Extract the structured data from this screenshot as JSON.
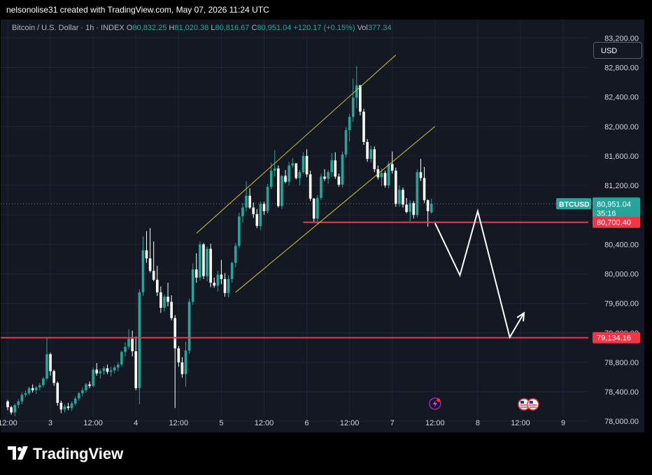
{
  "header": {
    "credit": "nelsonolise31 created with TradingView.com, May 07, 2026 11:24 UTC"
  },
  "legend": {
    "symbol": "Bitcoin / U.S. Dollar · 1h · INDEX",
    "open_label": "O",
    "open": "80,832.25",
    "high_label": "H",
    "high": "81,020.38",
    "low_label": "L",
    "low": "80,816.67",
    "close_label": "C",
    "close": "80,951.04",
    "change": "+120.17 (+0.15%)",
    "volume_label": "Vol",
    "volume": "377.34"
  },
  "currency_button": "USD",
  "price_tags": {
    "symbol": "BTCUSD",
    "last": "80,951.04",
    "countdown": "35:16",
    "level_upper": "80,700.40",
    "level_lower": "79,134.16"
  },
  "footer": {
    "brand": "TradingView"
  },
  "colors": {
    "up": "#26a69a",
    "down": "#ffffff",
    "level": "#f23645",
    "channel": "#d4c62e",
    "projection": "#ffffff",
    "background": "#141823"
  },
  "icons": [
    "lightning-event-icon",
    "us-flag-event-icon"
  ],
  "chart_data": {
    "type": "candlestick",
    "title": "Bitcoin / U.S. Dollar · 1h · INDEX",
    "xlabel": "",
    "ylabel": "",
    "ylim": [
      77850,
      83450
    ],
    "y_ticks": [
      78000,
      78400,
      78800,
      79200,
      79600,
      80000,
      80400,
      80800,
      81200,
      81600,
      82000,
      82400,
      82800,
      83200
    ],
    "y_tick_labels": [
      "78,000.00",
      "78,400.00",
      "78,800.00",
      "79,200.00",
      "79,600.00",
      "80,000.00",
      "80,400.00",
      "80,800.00",
      "81,200.00",
      "81,600.00",
      "82,000.00",
      "82,400.00",
      "82,800.00",
      "83,200.00"
    ],
    "x_ticks": [
      {
        "label": "12:00",
        "bar": 0
      },
      {
        "label": "3",
        "bar": 12
      },
      {
        "label": "12:00",
        "bar": 24
      },
      {
        "label": "4",
        "bar": 36
      },
      {
        "label": "12:00",
        "bar": 48
      },
      {
        "label": "5",
        "bar": 60
      },
      {
        "label": "12:00",
        "bar": 72
      },
      {
        "label": "6",
        "bar": 84
      },
      {
        "label": "12:00",
        "bar": 96
      },
      {
        "label": "7",
        "bar": 108
      },
      {
        "label": "12:00",
        "bar": 120
      },
      {
        "label": "8",
        "bar": 132
      },
      {
        "label": "12:00",
        "bar": 144
      },
      {
        "label": "9",
        "bar": 156
      }
    ],
    "candles_ohlc": [
      [
        78270,
        78290,
        78150,
        78190
      ],
      [
        78190,
        78210,
        78090,
        78120
      ],
      [
        78120,
        78240,
        78070,
        78220
      ],
      [
        78220,
        78300,
        78180,
        78270
      ],
      [
        78270,
        78390,
        78230,
        78360
      ],
      [
        78360,
        78420,
        78330,
        78380
      ],
      [
        78380,
        78470,
        78350,
        78450
      ],
      [
        78450,
        78500,
        78390,
        78420
      ],
      [
        78420,
        78480,
        78370,
        78460
      ],
      [
        78460,
        78520,
        78420,
        78490
      ],
      [
        78490,
        78600,
        78460,
        78580
      ],
      [
        78580,
        79140,
        78550,
        78910
      ],
      [
        78910,
        78930,
        78620,
        78680
      ],
      [
        78680,
        78700,
        78480,
        78520
      ],
      [
        78520,
        78540,
        78210,
        78250
      ],
      [
        78250,
        78280,
        78110,
        78160
      ],
      [
        78160,
        78230,
        78120,
        78200
      ],
      [
        78200,
        78250,
        78150,
        78180
      ],
      [
        78180,
        78270,
        78140,
        78240
      ],
      [
        78240,
        78340,
        78210,
        78310
      ],
      [
        78310,
        78400,
        78280,
        78380
      ],
      [
        78380,
        78460,
        78340,
        78420
      ],
      [
        78420,
        78520,
        78390,
        78500
      ],
      [
        78500,
        78540,
        78450,
        78480
      ],
      [
        78480,
        78730,
        78460,
        78700
      ],
      [
        78700,
        78790,
        78620,
        78650
      ],
      [
        78650,
        78710,
        78580,
        78680
      ],
      [
        78680,
        78750,
        78630,
        78720
      ],
      [
        78720,
        78770,
        78640,
        78670
      ],
      [
        78670,
        78740,
        78610,
        78690
      ],
      [
        78690,
        78760,
        78650,
        78730
      ],
      [
        78730,
        78800,
        78680,
        78770
      ],
      [
        78770,
        78960,
        78740,
        78940
      ],
      [
        78940,
        79070,
        78880,
        79010
      ],
      [
        79010,
        79250,
        78980,
        79120
      ],
      [
        79120,
        79230,
        78880,
        78950
      ],
      [
        78950,
        79150,
        78420,
        78450
      ],
      [
        78450,
        79790,
        78230,
        79750
      ],
      [
        79750,
        80510,
        79700,
        80320
      ],
      [
        80320,
        80580,
        80150,
        80210
      ],
      [
        80210,
        80620,
        80020,
        80040
      ],
      [
        80040,
        80440,
        79900,
        79920
      ],
      [
        79920,
        80110,
        79700,
        79750
      ],
      [
        79750,
        79830,
        79470,
        79540
      ],
      [
        79540,
        79720,
        79490,
        79690
      ],
      [
        79690,
        79880,
        79560,
        79620
      ],
      [
        79620,
        79710,
        79370,
        79400
      ],
      [
        79400,
        79440,
        78180,
        78990
      ],
      [
        78990,
        79020,
        78740,
        78800
      ],
      [
        78800,
        78870,
        78590,
        78640
      ],
      [
        78640,
        79080,
        78470,
        78960
      ],
      [
        78960,
        79660,
        78920,
        79620
      ],
      [
        79620,
        80140,
        79580,
        80060
      ],
      [
        80060,
        80280,
        79880,
        79950
      ],
      [
        79950,
        80440,
        79910,
        80400
      ],
      [
        80400,
        80420,
        79930,
        79970
      ],
      [
        79970,
        80370,
        79900,
        80340
      ],
      [
        80340,
        80410,
        79820,
        79880
      ],
      [
        79880,
        79950,
        79810,
        79840
      ],
      [
        79840,
        80040,
        79760,
        79990
      ],
      [
        79990,
        80190,
        79860,
        79930
      ],
      [
        79930,
        80010,
        79690,
        79740
      ],
      [
        79740,
        79980,
        79680,
        79930
      ],
      [
        79930,
        80170,
        79880,
        80150
      ],
      [
        80150,
        80420,
        80090,
        80380
      ],
      [
        80380,
        80830,
        80350,
        80780
      ],
      [
        80780,
        80960,
        80700,
        80900
      ],
      [
        80900,
        81260,
        80850,
        81060
      ],
      [
        81060,
        81160,
        80880,
        80900
      ],
      [
        80900,
        80970,
        80760,
        80810
      ],
      [
        80810,
        80880,
        80620,
        80650
      ],
      [
        80650,
        80980,
        80590,
        80950
      ],
      [
        80950,
        80980,
        80800,
        80850
      ],
      [
        80850,
        81220,
        80820,
        81180
      ],
      [
        81180,
        81510,
        81150,
        81400
      ],
      [
        81400,
        81680,
        81320,
        81430
      ],
      [
        81430,
        81470,
        80900,
        80920
      ],
      [
        80920,
        81340,
        80880,
        81330
      ],
      [
        81330,
        81410,
        81230,
        81250
      ],
      [
        81250,
        81520,
        81200,
        81470
      ],
      [
        81470,
        81570,
        81440,
        81500
      ],
      [
        81500,
        81450,
        81280,
        81300
      ],
      [
        81300,
        81410,
        81200,
        81380
      ],
      [
        81380,
        81650,
        81360,
        81600
      ],
      [
        81600,
        81690,
        81310,
        81350
      ],
      [
        81350,
        81400,
        80990,
        81020
      ],
      [
        81020,
        81030,
        80700,
        80750
      ],
      [
        80750,
        81070,
        80680,
        81030
      ],
      [
        81030,
        81360,
        81000,
        81320
      ],
      [
        81320,
        81420,
        81260,
        81290
      ],
      [
        81290,
        81410,
        81220,
        81380
      ],
      [
        81380,
        81640,
        81320,
        81540
      ],
      [
        81540,
        81650,
        81290,
        81320
      ],
      [
        81320,
        81360,
        81180,
        81210
      ],
      [
        81210,
        81660,
        81170,
        81620
      ],
      [
        81620,
        81990,
        81580,
        81950
      ],
      [
        81950,
        82170,
        81800,
        82130
      ],
      [
        82130,
        82650,
        82060,
        82390
      ],
      [
        82390,
        82820,
        82250,
        82560
      ],
      [
        82560,
        82550,
        82150,
        82200
      ],
      [
        82200,
        82240,
        81750,
        81790
      ],
      [
        81790,
        81830,
        81520,
        81560
      ],
      [
        81560,
        81740,
        81510,
        81690
      ],
      [
        81690,
        81730,
        81380,
        81420
      ],
      [
        81420,
        81470,
        81280,
        81310
      ],
      [
        81310,
        81430,
        81190,
        81370
      ],
      [
        81370,
        81400,
        81170,
        81200
      ],
      [
        81200,
        81530,
        81160,
        81490
      ],
      [
        81490,
        81660,
        81360,
        81400
      ],
      [
        81400,
        81440,
        80910,
        80950
      ],
      [
        80950,
        81200,
        80910,
        81140
      ],
      [
        81140,
        81170,
        80900,
        80940
      ],
      [
        80940,
        81030,
        80820,
        80840
      ],
      [
        80840,
        81000,
        80710,
        80960
      ],
      [
        80960,
        80990,
        80750,
        80800
      ],
      [
        80800,
        81420,
        80770,
        81380
      ],
      [
        81380,
        81560,
        81260,
        81300
      ],
      [
        81300,
        81450,
        80960,
        81000
      ],
      [
        81000,
        81010,
        80640,
        80850
      ],
      [
        80832.25,
        81020.38,
        80816.67,
        80951.04
      ]
    ],
    "levels": [
      {
        "price": 80700.4,
        "label": "80,700.40",
        "bar_from": 83
      },
      {
        "price": 79134.16,
        "label": "79,134.16",
        "bar_from": -2
      }
    ],
    "channel": [
      {
        "from": [
          53,
          80550
        ],
        "to": [
          109,
          82970
        ]
      },
      {
        "from": [
          64,
          79750
        ],
        "to": [
          120,
          82000
        ]
      }
    ],
    "projection_path": [
      [
        120,
        80690
      ],
      [
        127,
        79980
      ],
      [
        132,
        80850
      ],
      [
        141,
        79140
      ],
      [
        145,
        79470
      ]
    ],
    "last_price_line": 80951.04
  }
}
